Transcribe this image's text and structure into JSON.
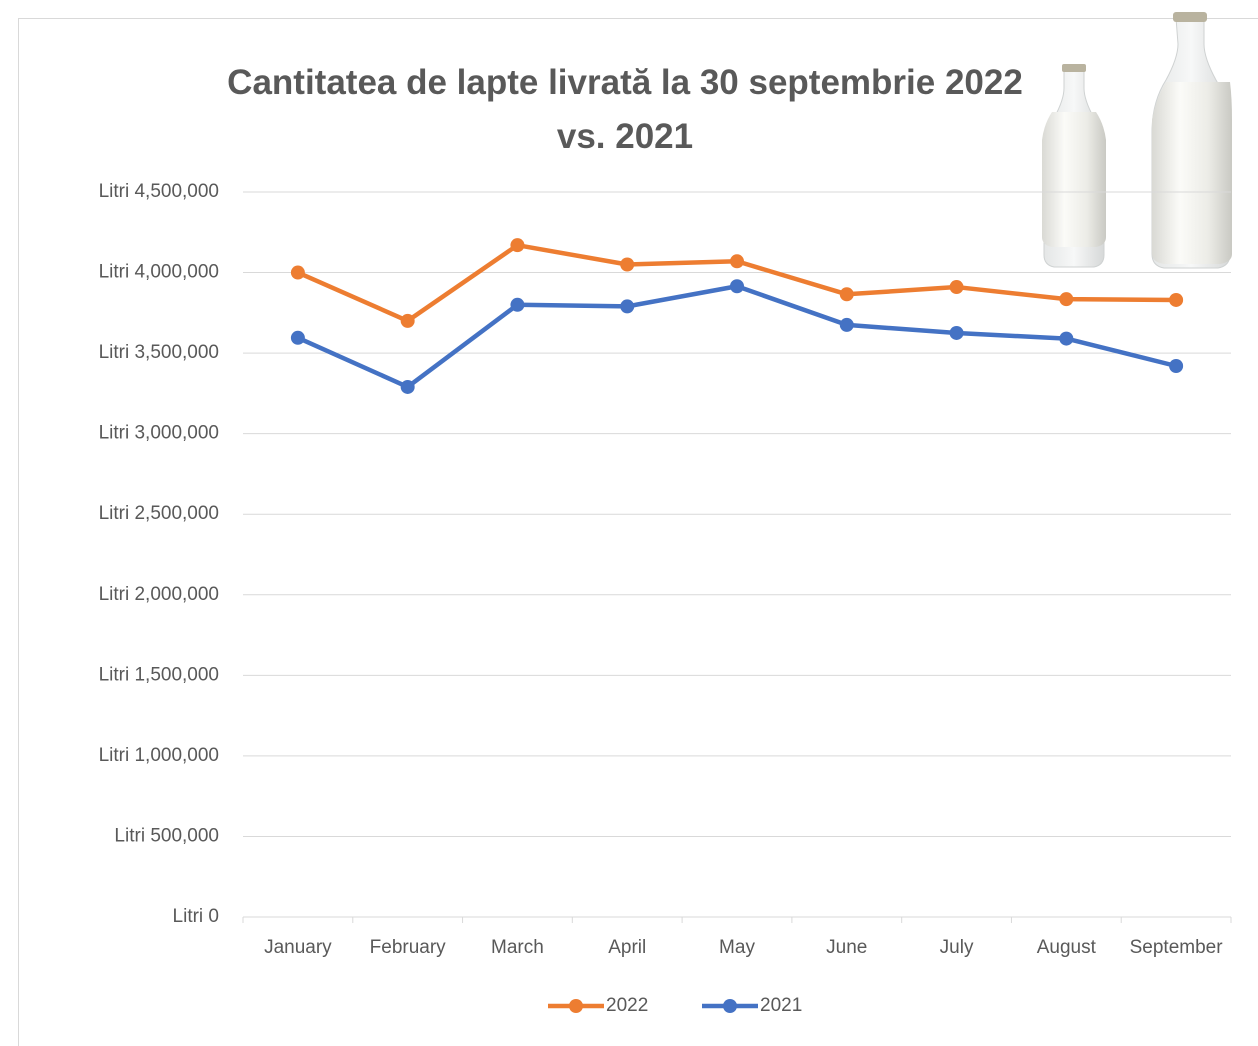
{
  "chart_data": {
    "type": "line",
    "title": "Cantitatea de lapte livrată la 30 septembrie 2022 vs. 2021",
    "categories": [
      "January",
      "February",
      "March",
      "April",
      "May",
      "June",
      "July",
      "August",
      "September"
    ],
    "series": [
      {
        "name": "2022",
        "color": "#ed7d31",
        "values": [
          4000000,
          3700000,
          4170000,
          4050000,
          4070000,
          3865000,
          3910000,
          3835000,
          3830000
        ]
      },
      {
        "name": "2021",
        "color": "#4472c4",
        "values": [
          3595000,
          3290000,
          3800000,
          3790000,
          3915000,
          3675000,
          3625000,
          3590000,
          3420000
        ]
      }
    ],
    "ylim": [
      0,
      4500000
    ],
    "yticks": [
      {
        "value": 0,
        "label": "Litri 0"
      },
      {
        "value": 500000,
        "label": "Litri 500,000"
      },
      {
        "value": 1000000,
        "label": "Litri 1,000,000"
      },
      {
        "value": 1500000,
        "label": "Litri 1,500,000"
      },
      {
        "value": 2000000,
        "label": "Litri 2,000,000"
      },
      {
        "value": 2500000,
        "label": "Litri 2,500,000"
      },
      {
        "value": 3000000,
        "label": "Litri 3,000,000"
      },
      {
        "value": 3500000,
        "label": "Litri 3,500,000"
      },
      {
        "value": 4000000,
        "label": "Litri 4,000,000"
      },
      {
        "value": 4500000,
        "label": "Litri 4,500,000"
      }
    ],
    "grid": true,
    "legend": "bottom"
  }
}
